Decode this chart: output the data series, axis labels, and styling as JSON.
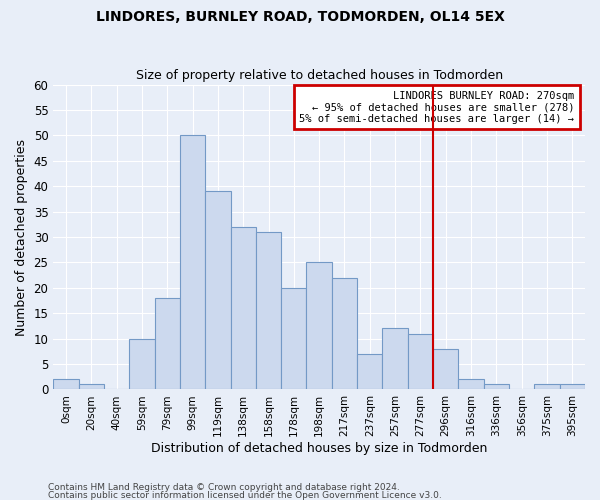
{
  "title": "LINDORES, BURNLEY ROAD, TODMORDEN, OL14 5EX",
  "subtitle": "Size of property relative to detached houses in Todmorden",
  "xlabel": "Distribution of detached houses by size in Todmorden",
  "ylabel": "Number of detached properties",
  "bar_color": "#ccd9ee",
  "bar_edge_color": "#7399c6",
  "background_color": "#e8eef8",
  "grid_color": "#ffffff",
  "categories": [
    "0sqm",
    "20sqm",
    "40sqm",
    "59sqm",
    "79sqm",
    "99sqm",
    "119sqm",
    "138sqm",
    "158sqm",
    "178sqm",
    "198sqm",
    "217sqm",
    "237sqm",
    "257sqm",
    "277sqm",
    "296sqm",
    "316sqm",
    "336sqm",
    "356sqm",
    "375sqm",
    "395sqm"
  ],
  "values": [
    2,
    1,
    0,
    10,
    18,
    50,
    39,
    32,
    31,
    20,
    25,
    22,
    7,
    12,
    11,
    8,
    2,
    1,
    0,
    1,
    1
  ],
  "ylim": [
    0,
    60
  ],
  "yticks": [
    0,
    5,
    10,
    15,
    20,
    25,
    30,
    35,
    40,
    45,
    50,
    55,
    60
  ],
  "vline_x": 14.5,
  "vline_color": "#cc0000",
  "annotation_title": "LINDORES BURNLEY ROAD: 270sqm",
  "annotation_line1": "← 95% of detached houses are smaller (278)",
  "annotation_line2": "5% of semi-detached houses are larger (14) →",
  "annotation_box_color": "#cc0000",
  "annotation_bg": "white",
  "footer1": "Contains HM Land Registry data © Crown copyright and database right 2024.",
  "footer2": "Contains public sector information licensed under the Open Government Licence v3.0."
}
